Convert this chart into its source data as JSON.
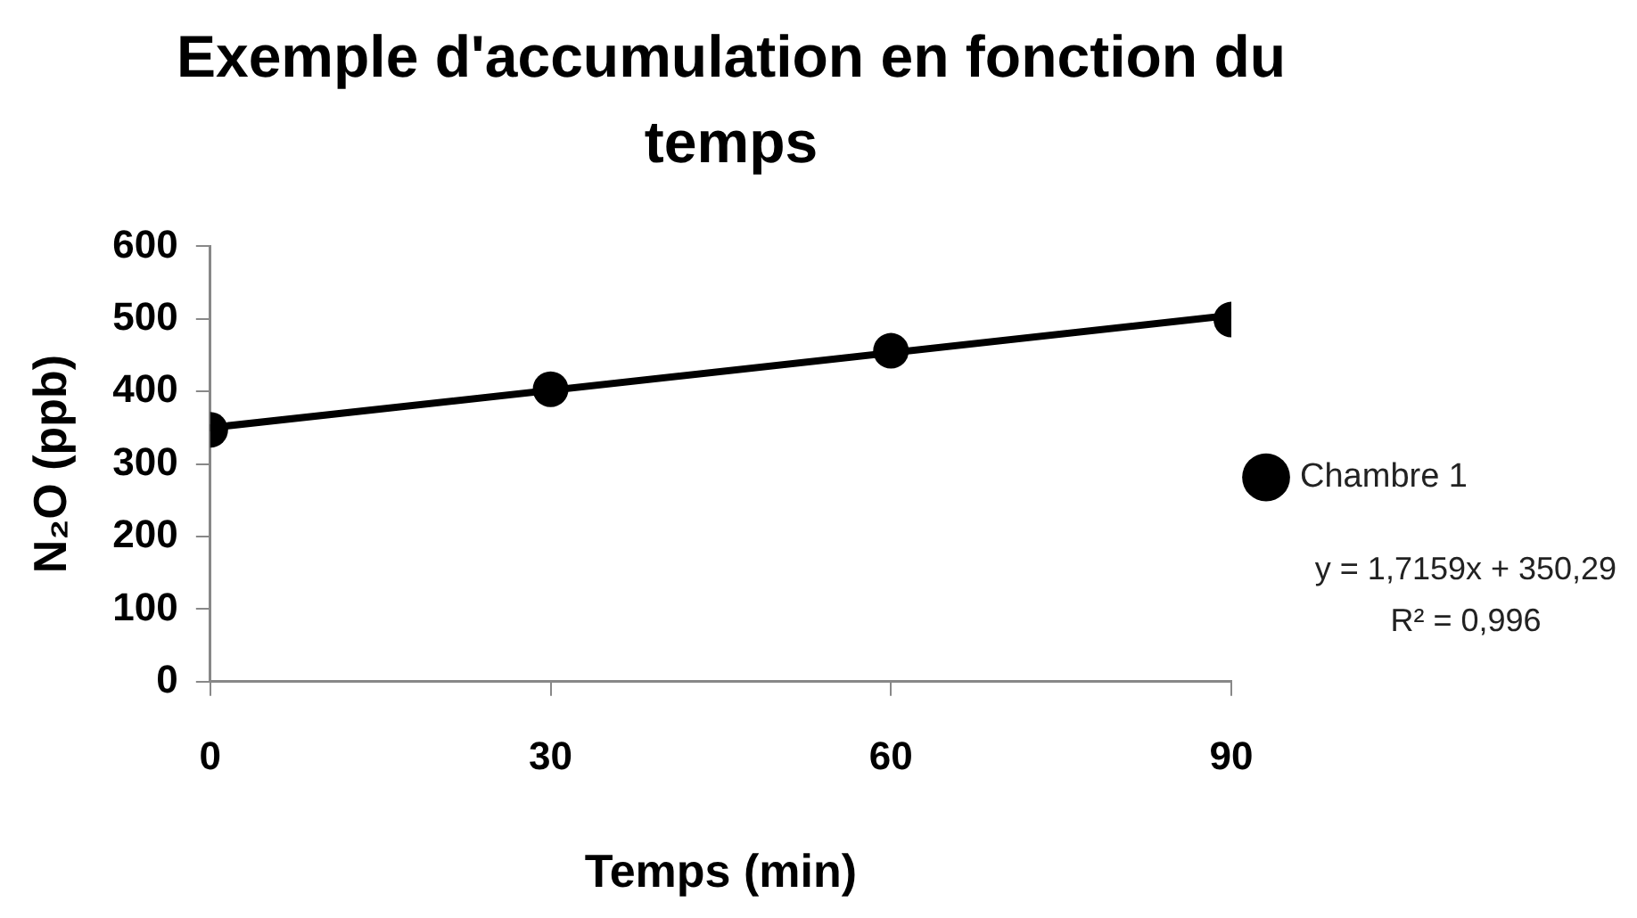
{
  "chart_data": {
    "type": "scatter",
    "title": "Exemple d'accumulation en fonction du temps",
    "xlabel": "Temps (min)",
    "ylabel": "N₂O (ppb)",
    "x": [
      0,
      30,
      60,
      90
    ],
    "series": [
      {
        "name": "Chambre 1",
        "color": "#000000",
        "values": [
          347,
          403,
          456,
          499
        ]
      },
      {
        "type": "line",
        "color": "#000000",
        "x": [
          0,
          90
        ],
        "values": [
          350,
          505
        ],
        "marker": "none"
      }
    ],
    "xlim": [
      0,
      90
    ],
    "xticks": [
      0,
      30,
      60,
      90
    ],
    "ylim": [
      0,
      600
    ],
    "yticks": [
      0,
      100,
      200,
      300,
      400,
      500,
      600
    ],
    "marker": "circle",
    "legend": "right",
    "annotations": [
      "y = 1,7159x + 350,29",
      "R² = 0,996"
    ]
  }
}
